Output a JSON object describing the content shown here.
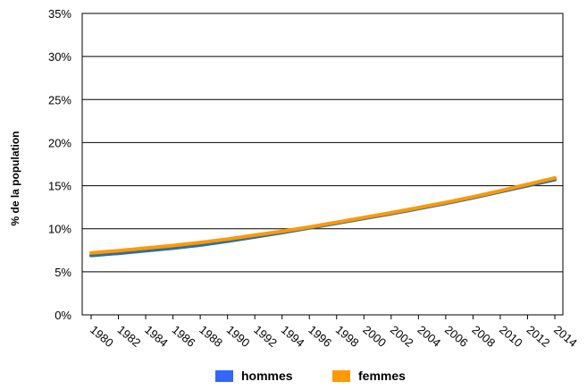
{
  "chart_data": {
    "type": "line",
    "title": "",
    "xlabel": "",
    "ylabel": "% de la population",
    "x": [
      1980,
      1982,
      1984,
      1986,
      1988,
      1990,
      1992,
      1994,
      1996,
      1998,
      2000,
      2002,
      2004,
      2006,
      2008,
      2010,
      2012,
      2014
    ],
    "x_tick_labels": [
      "1980",
      "1982",
      "1984",
      "1986",
      "1988",
      "1990",
      "1992",
      "1994",
      "1996",
      "1998",
      "2000",
      "2002",
      "2004",
      "2006",
      "2008",
      "2010",
      "2012",
      "2014"
    ],
    "ylim": [
      0,
      35
    ],
    "y_ticks": [
      0,
      5,
      10,
      15,
      20,
      25,
      30,
      35
    ],
    "y_tick_labels": [
      "0%",
      "5%",
      "10%",
      "15%",
      "20%",
      "25%",
      "30%",
      "35%"
    ],
    "grid": true,
    "legend_position": "bottom",
    "series": [
      {
        "name": "hommes",
        "color": "#3366ff",
        "line_color": "#2a6fa8",
        "values": [
          6.9,
          7.15,
          7.45,
          7.75,
          8.1,
          8.55,
          9.05,
          9.55,
          10.1,
          10.65,
          11.2,
          11.75,
          12.35,
          12.95,
          13.6,
          14.3,
          15.0,
          15.7
        ]
      },
      {
        "name": "femmes",
        "color": "#ff9900",
        "line_color": "#ff9900",
        "values": [
          7.2,
          7.45,
          7.75,
          8.05,
          8.4,
          8.8,
          9.25,
          9.7,
          10.2,
          10.75,
          11.3,
          11.85,
          12.45,
          13.05,
          13.7,
          14.4,
          15.15,
          15.9
        ]
      }
    ]
  }
}
